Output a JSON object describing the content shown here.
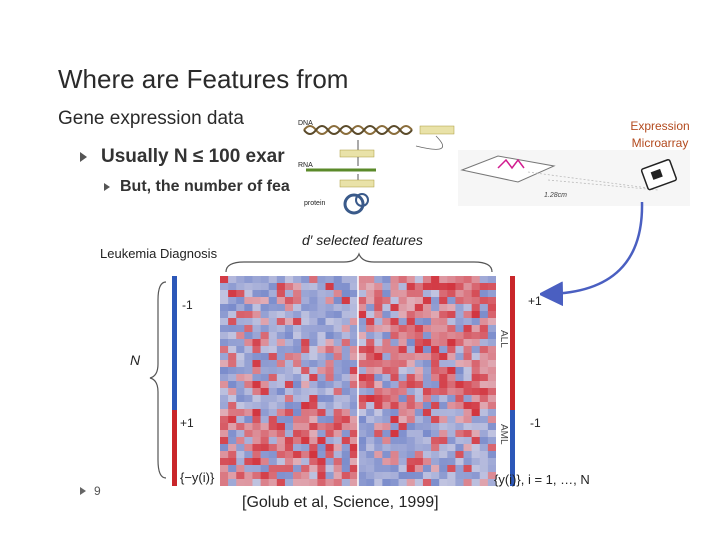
{
  "slide": {
    "title": "Where are Features from",
    "subtitle": "Gene expression data",
    "bullet1": "Usually N ≤ 100 exar",
    "bullet2": "But, the number of fea",
    "page_number": "9"
  },
  "diagram": {
    "dna": "DNA",
    "rna": "RNA",
    "protein": "protein"
  },
  "microarray": {
    "label_line1": "Expression",
    "label_line2": "Microarray",
    "scale": "1.28cm"
  },
  "heatmap": {
    "title": "Leukemia Diagnosis",
    "features_label": "d′ selected features",
    "n_label": "N",
    "left_top": "-1",
    "left_bottom": "+1",
    "right_top": "+1",
    "right_bottom": "-1",
    "right_upper_class": "ALL",
    "right_lower_class": "AML",
    "formula_left": "{−y(i)}",
    "formula_right": "{y(i)}, i = 1, …, N",
    "citation": "[Golub et al, Science, 1999]"
  },
  "colors": {
    "blue": "#2c57b8",
    "red": "#c9262a",
    "arrow": "#4a5fc1",
    "expr_label": "#b34a1e"
  }
}
